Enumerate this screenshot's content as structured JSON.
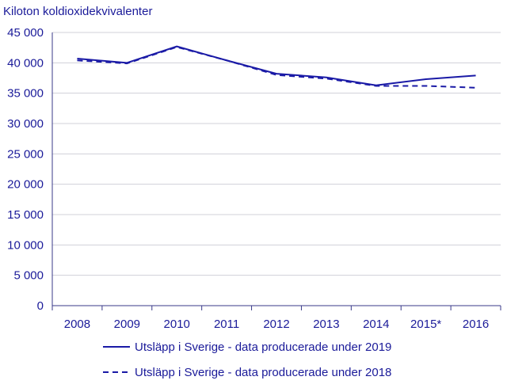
{
  "chart_data": {
    "type": "line",
    "ylabel": "Kiloton koldioxidekvivalenter",
    "categories": [
      "2008",
      "2009",
      "2010",
      "2011",
      "2012",
      "2013",
      "2014",
      "2015*",
      "2016"
    ],
    "ylim": [
      0,
      45000
    ],
    "yticks": [
      0,
      5000,
      10000,
      15000,
      20000,
      25000,
      30000,
      35000,
      40000,
      45000
    ],
    "ytick_labels": [
      "0",
      "5 000",
      "10 000",
      "15 000",
      "20 000",
      "25 000",
      "30 000",
      "35 000",
      "40 000",
      "45 000"
    ],
    "grid": true,
    "legend_position": "bottom",
    "series": [
      {
        "name": "Utsläpp i Sverige - data producerade under 2019",
        "style": "solid",
        "values": [
          40700,
          40000,
          42700,
          40400,
          38200,
          37600,
          36300,
          37300,
          37900
        ]
      },
      {
        "name": "Utsläpp i Sverige - data producerade under 2018",
        "style": "dashed",
        "values": [
          40400,
          39900,
          42600,
          40400,
          38000,
          37400,
          36200,
          36200,
          35900
        ]
      }
    ],
    "colors": {
      "line": "#1a1aa6",
      "text": "#1a1a99",
      "grid": "#d0d0d8",
      "axis": "#3a3a8a"
    }
  }
}
